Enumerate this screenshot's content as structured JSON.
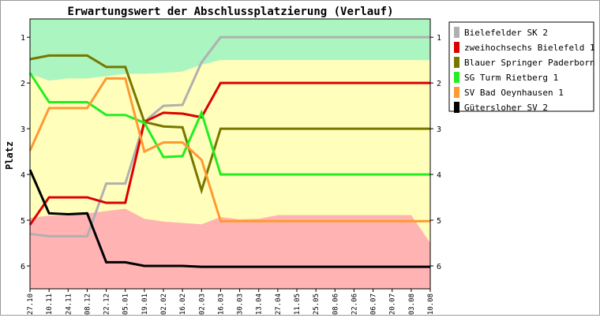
{
  "chart_data": {
    "type": "line",
    "title": "Erwartungswert der Abschlussplatzierung (Verlauf)",
    "ylabel": "Platz",
    "xlabel": "",
    "y_inverted": true,
    "ylim": [
      0.6,
      6.5
    ],
    "yticks": [
      1,
      2,
      3,
      4,
      5,
      6
    ],
    "categories": [
      "27.10",
      "10.11",
      "24.11",
      "08.12",
      "22.12",
      "05.01",
      "19.01",
      "02.02",
      "16.02",
      "02.03",
      "16.03",
      "30.03",
      "13.04",
      "27.04",
      "11.05",
      "25.05",
      "08.06",
      "22.06",
      "06.07",
      "20.07",
      "03.08",
      "10.08"
    ],
    "bands": {
      "upper_boundary": [
        1.8,
        1.95,
        1.9,
        1.9,
        1.85,
        1.8,
        1.8,
        1.78,
        1.75,
        1.6,
        1.5,
        1.5,
        1.5,
        1.5,
        1.5,
        1.5,
        1.5,
        1.5,
        1.5,
        1.5,
        1.5,
        1.5
      ],
      "lower_boundary": [
        4.95,
        4.9,
        4.9,
        4.85,
        4.8,
        4.75,
        4.97,
        5.03,
        5.06,
        5.09,
        4.93,
        4.98,
        4.97,
        4.89,
        4.89,
        4.89,
        4.89,
        4.89,
        4.89,
        4.89,
        4.89,
        5.5
      ],
      "colors": {
        "top": "#aaf5c0",
        "middle": "#ffffbb",
        "bottom": "#ffb3b3"
      }
    },
    "series": [
      {
        "name": "Bielefelder SK 2",
        "color": "#b0b0b0",
        "values": [
          5.3,
          5.35,
          5.35,
          5.35,
          4.2,
          4.2,
          2.85,
          2.5,
          2.48,
          1.55,
          1.0,
          1.0,
          1.0,
          1.0,
          1.0,
          1.0,
          1.0,
          1.0,
          1.0,
          1.0,
          1.0,
          1.0
        ]
      },
      {
        "name": "zweihochsechs Bielefeld 1",
        "color": "#dd0000",
        "values": [
          5.1,
          4.5,
          4.5,
          4.5,
          4.62,
          4.62,
          2.85,
          2.65,
          2.67,
          2.75,
          2.0,
          2.0,
          2.0,
          2.0,
          2.0,
          2.0,
          2.0,
          2.0,
          2.0,
          2.0,
          2.0,
          2.0
        ]
      },
      {
        "name": "Blauer Springer Paderborn 1",
        "color": "#777700",
        "values": [
          1.48,
          1.4,
          1.4,
          1.4,
          1.65,
          1.65,
          2.85,
          2.95,
          2.97,
          4.35,
          3.0,
          3.0,
          3.0,
          3.0,
          3.0,
          3.0,
          3.0,
          3.0,
          3.0,
          3.0,
          3.0,
          3.0
        ]
      },
      {
        "name": "SG Turm Rietberg 1",
        "color": "#22ee22",
        "values": [
          1.78,
          2.42,
          2.42,
          2.42,
          2.7,
          2.7,
          2.87,
          3.62,
          3.6,
          2.65,
          4.0,
          4.0,
          4.0,
          4.0,
          4.0,
          4.0,
          4.0,
          4.0,
          4.0,
          4.0,
          4.0,
          4.0
        ]
      },
      {
        "name": "SV Bad Oeynhausen 1",
        "color": "#ff9933",
        "values": [
          3.48,
          2.55,
          2.55,
          2.55,
          1.9,
          1.9,
          3.5,
          3.3,
          3.3,
          3.68,
          5.02,
          5.02,
          5.02,
          5.02,
          5.02,
          5.02,
          5.02,
          5.02,
          5.02,
          5.02,
          5.02,
          5.02
        ]
      },
      {
        "name": "Gütersloher SV 2",
        "color": "#000000",
        "values": [
          3.9,
          4.85,
          4.87,
          4.85,
          5.92,
          5.92,
          6.0,
          6.0,
          6.0,
          6.02,
          6.02,
          6.02,
          6.02,
          6.02,
          6.02,
          6.02,
          6.02,
          6.02,
          6.02,
          6.02,
          6.02,
          6.02
        ]
      }
    ],
    "legend_position": "right",
    "grid": false
  }
}
